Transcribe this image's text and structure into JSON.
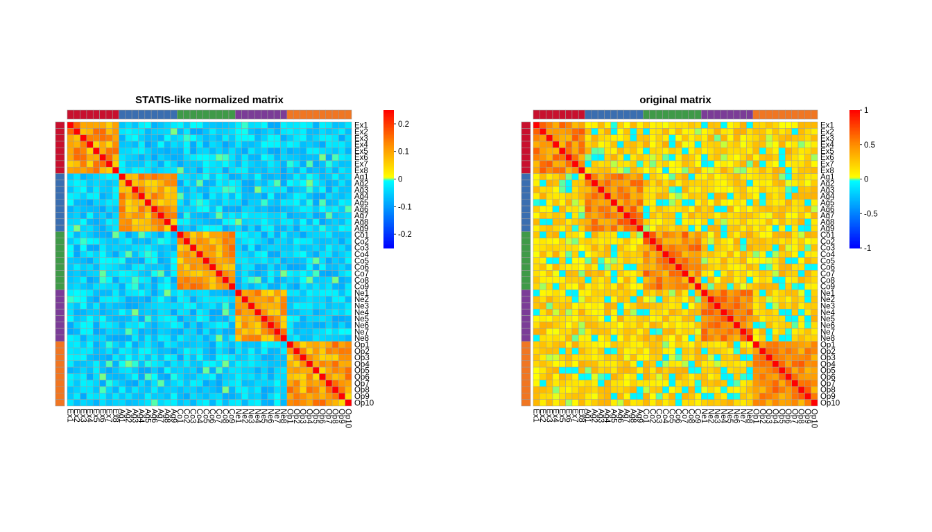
{
  "chart_data": [
    {
      "type": "heatmap",
      "title": "STATIS-like normalized matrix",
      "labels": [
        "Ex1",
        "Ex2",
        "Ex3",
        "Ex4",
        "Ex5",
        "Ex6",
        "Ex7",
        "Ex8",
        "Ag1",
        "Ag2",
        "Ag3",
        "Ag4",
        "Ag5",
        "Ag6",
        "Ag7",
        "Ag8",
        "Ag9",
        "Co1",
        "Co2",
        "Co3",
        "Co4",
        "Co5",
        "Co6",
        "Co7",
        "Co8",
        "Co9",
        "Ne1",
        "Ne2",
        "Ne3",
        "Ne4",
        "Ne5",
        "Ne6",
        "Ne7",
        "Ne8",
        "Op1",
        "Op2",
        "Op3",
        "Op4",
        "Op5",
        "Op6",
        "Op7",
        "Op8",
        "Op9",
        "Op10"
      ],
      "groups": [
        {
          "size": 8,
          "color": "#c8102e"
        },
        {
          "size": 9,
          "color": "#3a6eb0"
        },
        {
          "size": 9,
          "color": "#3f9a48"
        },
        {
          "size": 8,
          "color": "#7b3c97"
        },
        {
          "size": 10,
          "color": "#f07622"
        }
      ],
      "colorbar": {
        "min": -0.25,
        "max": 0.25,
        "ticks": [
          -0.2,
          -0.1,
          0,
          0.1,
          0.2
        ],
        "tick_labels": [
          "-0.2",
          "-0.1",
          "0",
          "0.1",
          "0.2"
        ]
      },
      "diagonal": 0.25,
      "within_group": {
        "base": 0.1,
        "amplitude": 0.06
      },
      "between_group": {
        "base": -0.045,
        "amplitude": 0.045
      }
    },
    {
      "type": "heatmap",
      "title": "original matrix",
      "labels": [
        "Ex1",
        "Ex2",
        "Ex3",
        "Ex4",
        "Ex5",
        "Ex6",
        "Ex7",
        "Ex8",
        "Ag1",
        "Ag2",
        "Ag3",
        "Ag4",
        "Ag5",
        "Ag6",
        "Ag7",
        "Ag8",
        "Ag9",
        "Co1",
        "Co2",
        "Co3",
        "Co4",
        "Co5",
        "Co6",
        "Co7",
        "Co8",
        "Co9",
        "Ne1",
        "Ne2",
        "Ne3",
        "Ne4",
        "Ne5",
        "Ne6",
        "Ne7",
        "Ne8",
        "Op1",
        "Op2",
        "Op3",
        "Op4",
        "Op5",
        "Op6",
        "Op7",
        "Op8",
        "Op9",
        "Op10"
      ],
      "groups": [
        {
          "size": 8,
          "color": "#c8102e"
        },
        {
          "size": 9,
          "color": "#3a6eb0"
        },
        {
          "size": 9,
          "color": "#3f9a48"
        },
        {
          "size": 8,
          "color": "#7b3c97"
        },
        {
          "size": 10,
          "color": "#f07622"
        }
      ],
      "colorbar": {
        "min": -1,
        "max": 1,
        "ticks": [
          -1,
          -0.5,
          0,
          0.5,
          1
        ],
        "tick_labels": [
          "-1",
          "-0.5",
          "0",
          "0.5",
          "1"
        ]
      },
      "diagonal": 1,
      "within_group": {
        "base": 0.5,
        "amplitude": 0.2
      },
      "between_group": {
        "base": 0.15,
        "amplitude": 0.22
      }
    }
  ]
}
